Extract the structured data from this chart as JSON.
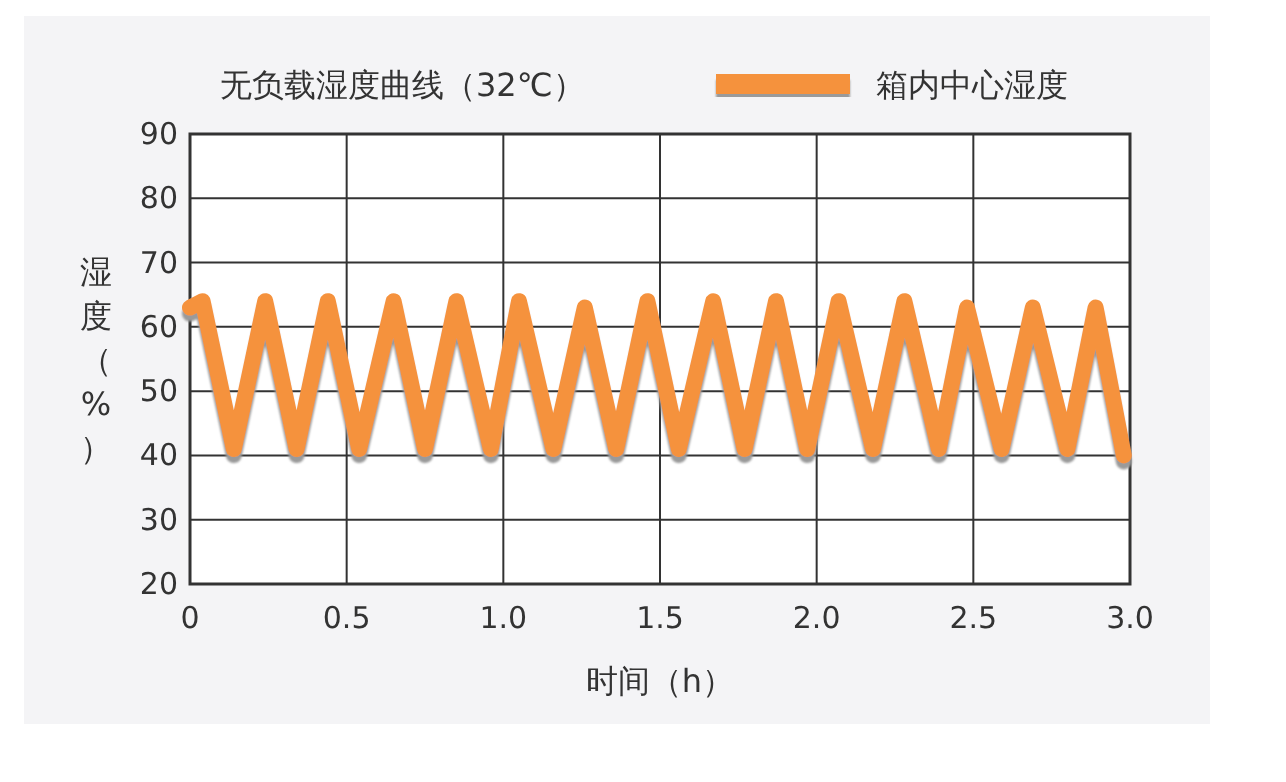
{
  "chart_data": {
    "type": "line",
    "title": "无负载湿度曲线（32℃）",
    "xlabel": "时间（h）",
    "ylabel": "湿度（%）",
    "xlim": [
      0,
      3
    ],
    "xticks": [
      0,
      0.5,
      {
        "value": 1,
        "label": "1.0"
      },
      1.5,
      {
        "value": 2,
        "label": "2.0"
      },
      2.5,
      {
        "value": 3,
        "label": "3.0"
      }
    ],
    "ylim": [
      20,
      90
    ],
    "yticks": [
      20,
      30,
      40,
      50,
      60,
      70,
      80,
      90
    ],
    "grid": true,
    "legend": "top right",
    "line_style": "solid",
    "series": [
      {
        "name": "箱内中心湿度",
        "color": "#f5923e",
        "x": [
          0,
          0.04,
          0.14,
          0.24,
          0.34,
          0.44,
          0.54,
          0.65,
          0.75,
          0.85,
          0.96,
          1.05,
          1.16,
          1.26,
          1.36,
          1.46,
          1.56,
          1.67,
          1.77,
          1.87,
          1.97,
          2.07,
          2.18,
          2.28,
          2.39,
          2.48,
          2.59,
          2.69,
          2.8,
          2.89,
          2.98
        ],
        "values": [
          63,
          64,
          41,
          64,
          41,
          64,
          41,
          64,
          41,
          64,
          41,
          64,
          41,
          63,
          41,
          64,
          41,
          64,
          41,
          64,
          41,
          64,
          41,
          64,
          41,
          63,
          41,
          63,
          41,
          63,
          40
        ]
      }
    ]
  }
}
